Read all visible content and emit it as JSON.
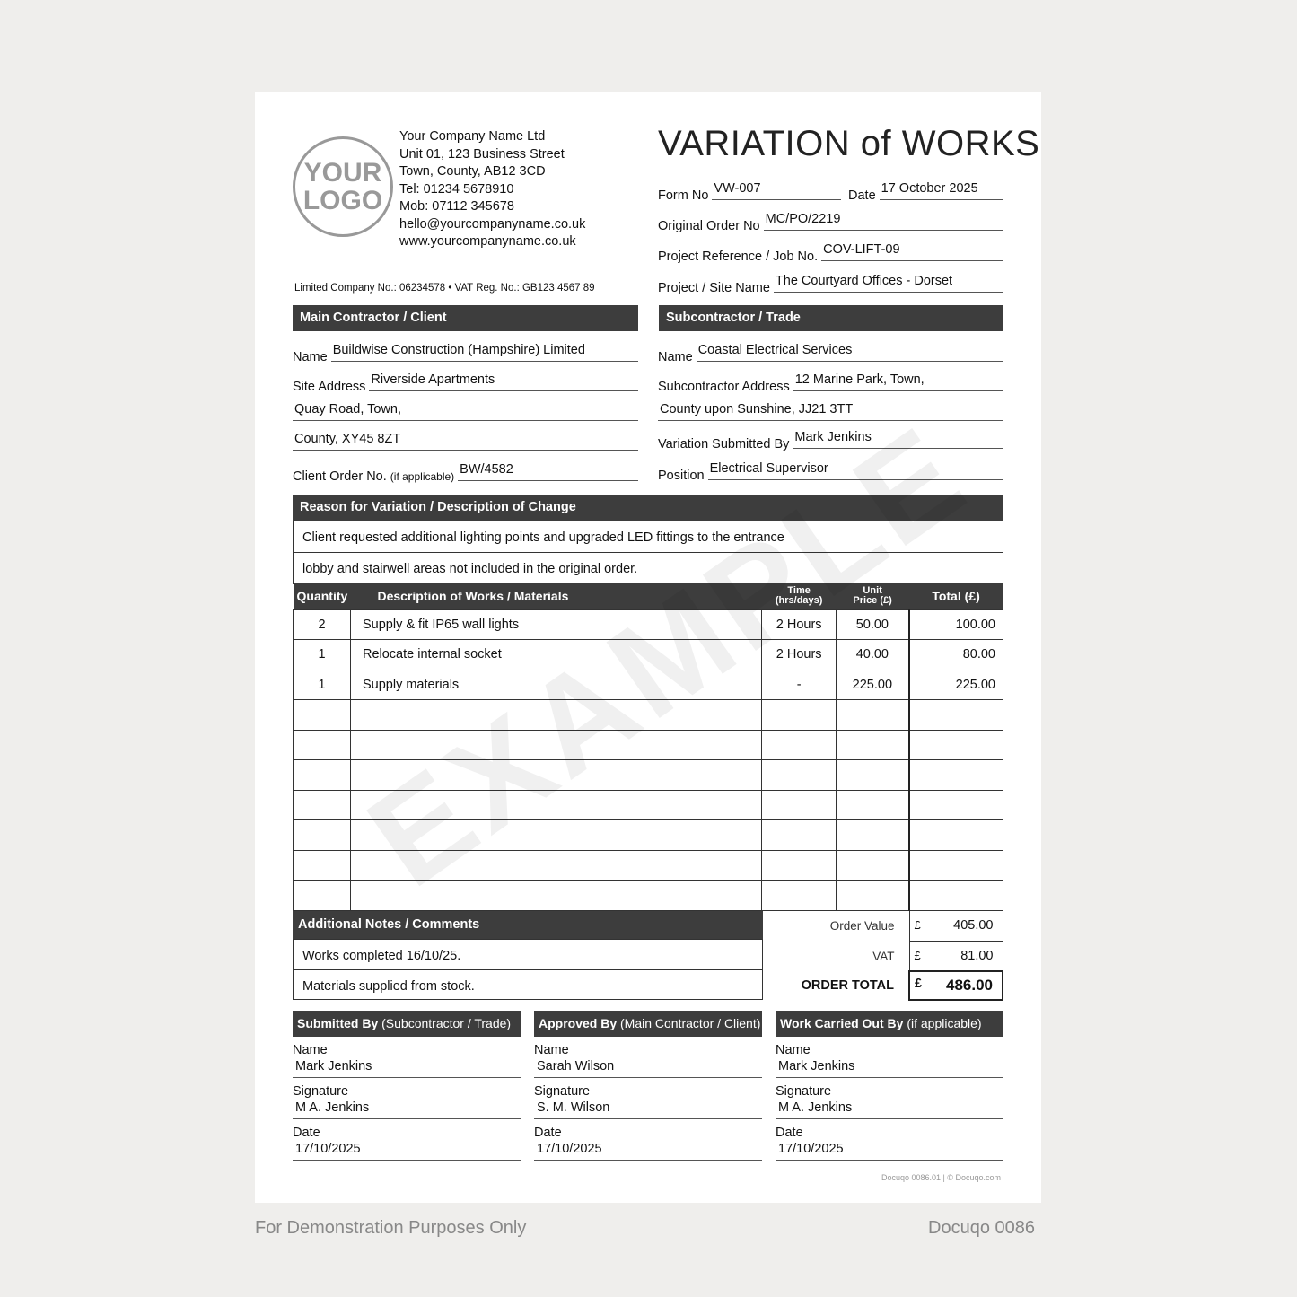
{
  "logo": {
    "line1": "YOUR",
    "line2": "LOGO"
  },
  "company": {
    "lines": [
      "Your Company Name Ltd",
      "Unit 01, 123 Business Street",
      "Town, County, AB12 3CD",
      "Tel: 01234 5678910",
      "Mob: 07112 345678",
      "hello@yourcompanyname.co.uk",
      "www.yourcompanyname.co.uk"
    ],
    "registration": "Limited Company No.: 06234578 • VAT Reg. No.: GB123 4567 89"
  },
  "title": "VARIATION of WORKS",
  "header": {
    "form_no": {
      "label": "Form No",
      "value": "VW-007"
    },
    "date": {
      "label": "Date",
      "value": "17 October 2025"
    },
    "original_order": {
      "label": "Original Order No",
      "value": "MC/PO/2219"
    },
    "project_ref": {
      "label": "Project Reference / Job No.",
      "value": "COV-LIFT-09"
    },
    "site_name": {
      "label": "Project / Site Name",
      "value": "The Courtyard Offices - Dorset"
    }
  },
  "client": {
    "heading": "Main Contractor / Client",
    "name_label": "Name",
    "name": "Buildwise Construction (Hampshire) Limited",
    "address_label": "Site Address",
    "address": [
      "Riverside Apartments",
      "Quay Road, Town,",
      "County, XY45 8ZT"
    ],
    "order_label": "Client Order No.",
    "order_label_small": "(if applicable)",
    "order_no": "BW/4582"
  },
  "subcontractor": {
    "heading": "Subcontractor / Trade",
    "name_label": "Name",
    "name": "Coastal Electrical Services",
    "address_label": "Subcontractor Address",
    "address": [
      "12 Marine Park, Town,",
      "County upon Sunshine, JJ21 3TT"
    ],
    "submitted_label": "Variation Submitted By",
    "submitted_by": "Mark Jenkins",
    "position_label": "Position",
    "position": "Electrical Supervisor"
  },
  "reason": {
    "heading": "Reason for Variation / Description of Change",
    "lines": [
      "Client requested additional lighting points and upgraded LED fittings to the entrance",
      "lobby and stairwell areas not included in the original order."
    ]
  },
  "items": {
    "headers": {
      "quantity": "Quantity",
      "description": "Description of Works / Materials",
      "time1": "Time",
      "time2": "(hrs/days)",
      "unit1": "Unit",
      "unit2": "Price (£)",
      "total": "Total (£)"
    },
    "rows": [
      {
        "quantity": "2",
        "description": "Supply & fit IP65 wall lights",
        "time": "2 Hours",
        "unit_price": "50.00",
        "total": "100.00"
      },
      {
        "quantity": "1",
        "description": "Relocate internal socket",
        "time": "2 Hours",
        "unit_price": "40.00",
        "total": "80.00"
      },
      {
        "quantity": "1",
        "description": "Supply materials",
        "time": "-",
        "unit_price": "225.00",
        "total": "225.00"
      }
    ]
  },
  "notes": {
    "heading": "Additional Notes / Comments",
    "lines": [
      "Works completed 16/10/25.",
      "Materials supplied from stock."
    ]
  },
  "totals": {
    "currency": "£",
    "order_value_label": "Order Value",
    "order_value": "405.00",
    "vat_label": "VAT",
    "vat": "81.00",
    "order_total_label": "ORDER TOTAL",
    "order_total": "486.00"
  },
  "signoff": [
    {
      "heading": "Submitted By",
      "heading_sub": "(Subcontractor / Trade)",
      "name_label": "Name",
      "name": "Mark Jenkins",
      "signature_label": "Signature",
      "signature": "M A. Jenkins",
      "date_label": "Date",
      "date": "17/10/2025"
    },
    {
      "heading": "Approved By",
      "heading_sub": "(Main Contractor / Client)",
      "name_label": "Name",
      "name": "Sarah Wilson",
      "signature_label": "Signature",
      "signature": "S. M. Wilson",
      "date_label": "Date",
      "date": "17/10/2025"
    },
    {
      "heading": "Work Carried Out By",
      "heading_sub": "(if applicable)",
      "name_label": "Name",
      "name": "Mark Jenkins",
      "signature_label": "Signature",
      "signature": "M A. Jenkins",
      "date_label": "Date",
      "date": "17/10/2025"
    }
  ],
  "footer_code": "Docuqo 0086.01 | © Docuqo.com",
  "watermark": "EXAMPLE",
  "caption_left": "For Demonstration Purposes Only",
  "caption_right": "Docuqo 0086"
}
